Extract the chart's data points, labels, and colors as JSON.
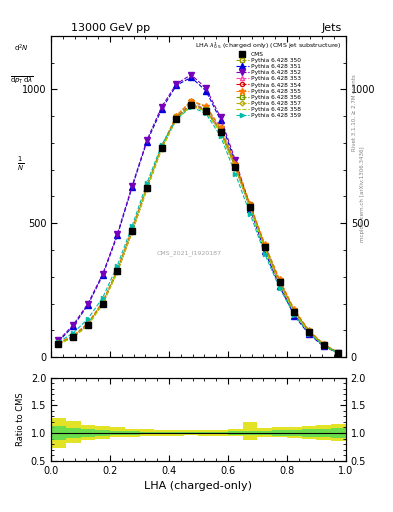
{
  "title_top": "13000 GeV pp",
  "title_right": "Jets",
  "plot_title": "LHA $\\lambda^{1}_{0.5}$ (charged only) (CMS jet substructure)",
  "xlabel": "LHA (charged-only)",
  "ylabel_ratio": "Ratio to CMS",
  "watermark": "CMS_2021_I1920187",
  "right_label": "Rivet 3.1.10, ≥ 2.7M events",
  "right_label2": "mcplots.cern.ch [arXiv:1306.3436]",
  "xlim": [
    0,
    1
  ],
  "ylim_main": [
    0,
    1200
  ],
  "ylim_ratio": [
    0.5,
    2.0
  ],
  "yticks_main": [
    0,
    500,
    1000
  ],
  "yticks_ratio": [
    0.5,
    1.0,
    1.5,
    2.0
  ],
  "ylabel_parts": [
    "mathrm d^{2}N",
    "mathrm d p_{T} mathrm d lambda"
  ],
  "series": [
    {
      "label": "CMS",
      "color": "#000000",
      "marker": "s",
      "markersize": 4,
      "linestyle": "none",
      "filled": true,
      "is_data": true,
      "x": [
        0.025,
        0.075,
        0.125,
        0.175,
        0.225,
        0.275,
        0.325,
        0.375,
        0.425,
        0.475,
        0.525,
        0.575,
        0.625,
        0.675,
        0.725,
        0.775,
        0.825,
        0.875,
        0.925,
        0.975
      ],
      "y": [
        50,
        75,
        120,
        200,
        320,
        470,
        630,
        780,
        890,
        940,
        920,
        840,
        710,
        560,
        410,
        280,
        170,
        95,
        45,
        15
      ]
    },
    {
      "label": "Pythia 6.428 350",
      "color": "#999900",
      "marker": "s",
      "markersize": 3,
      "linestyle": "--",
      "filled": false,
      "x": [
        0.025,
        0.075,
        0.125,
        0.175,
        0.225,
        0.275,
        0.325,
        0.375,
        0.425,
        0.475,
        0.525,
        0.575,
        0.625,
        0.675,
        0.725,
        0.775,
        0.825,
        0.875,
        0.925,
        0.975
      ],
      "y": [
        52,
        78,
        125,
        205,
        325,
        475,
        635,
        785,
        900,
        955,
        935,
        855,
        720,
        570,
        420,
        288,
        175,
        98,
        47,
        17
      ]
    },
    {
      "label": "Pythia 6.428 351",
      "color": "#0000dd",
      "marker": "^",
      "markersize": 4,
      "linestyle": "--",
      "filled": true,
      "x": [
        0.025,
        0.075,
        0.125,
        0.175,
        0.225,
        0.275,
        0.325,
        0.375,
        0.425,
        0.475,
        0.525,
        0.575,
        0.625,
        0.675,
        0.725,
        0.775,
        0.825,
        0.875,
        0.925,
        0.975
      ],
      "y": [
        58,
        115,
        195,
        305,
        455,
        635,
        805,
        925,
        1015,
        1045,
        995,
        885,
        725,
        555,
        395,
        265,
        155,
        85,
        40,
        14
      ]
    },
    {
      "label": "Pythia 6.428 352",
      "color": "#7700bb",
      "marker": "v",
      "markersize": 4,
      "linestyle": "--",
      "filled": true,
      "x": [
        0.025,
        0.075,
        0.125,
        0.175,
        0.225,
        0.275,
        0.325,
        0.375,
        0.425,
        0.475,
        0.525,
        0.575,
        0.625,
        0.675,
        0.725,
        0.775,
        0.825,
        0.875,
        0.925,
        0.975
      ],
      "y": [
        62,
        120,
        200,
        310,
        460,
        640,
        810,
        935,
        1020,
        1055,
        1005,
        895,
        735,
        565,
        405,
        272,
        160,
        88,
        42,
        15
      ]
    },
    {
      "label": "Pythia 6.428 353",
      "color": "#ff44aa",
      "marker": "^",
      "markersize": 3,
      "linestyle": "--",
      "filled": false,
      "x": [
        0.025,
        0.075,
        0.125,
        0.175,
        0.225,
        0.275,
        0.325,
        0.375,
        0.425,
        0.475,
        0.525,
        0.575,
        0.625,
        0.675,
        0.725,
        0.775,
        0.825,
        0.875,
        0.925,
        0.975
      ],
      "y": [
        51,
        76,
        122,
        202,
        322,
        472,
        632,
        782,
        895,
        948,
        928,
        848,
        712,
        562,
        412,
        282,
        172,
        96,
        46,
        16
      ]
    },
    {
      "label": "Pythia 6.428 354",
      "color": "#dd0000",
      "marker": "o",
      "markersize": 3,
      "linestyle": "--",
      "filled": false,
      "x": [
        0.025,
        0.075,
        0.125,
        0.175,
        0.225,
        0.275,
        0.325,
        0.375,
        0.425,
        0.475,
        0.525,
        0.575,
        0.625,
        0.675,
        0.725,
        0.775,
        0.825,
        0.875,
        0.925,
        0.975
      ],
      "y": [
        50,
        75,
        120,
        200,
        320,
        470,
        630,
        780,
        892,
        942,
        922,
        842,
        710,
        560,
        410,
        280,
        170,
        95,
        45,
        15
      ]
    },
    {
      "label": "Pythia 6.428 355",
      "color": "#ff7700",
      "marker": "*",
      "markersize": 5,
      "linestyle": "--",
      "filled": true,
      "x": [
        0.025,
        0.075,
        0.125,
        0.175,
        0.225,
        0.275,
        0.325,
        0.375,
        0.425,
        0.475,
        0.525,
        0.575,
        0.625,
        0.675,
        0.725,
        0.775,
        0.825,
        0.875,
        0.925,
        0.975
      ],
      "y": [
        54,
        80,
        127,
        207,
        328,
        478,
        638,
        788,
        902,
        958,
        938,
        858,
        722,
        572,
        422,
        290,
        178,
        100,
        48,
        17
      ]
    },
    {
      "label": "Pythia 6.428 356",
      "color": "#779900",
      "marker": "s",
      "markersize": 3,
      "linestyle": "--",
      "filled": false,
      "x": [
        0.025,
        0.075,
        0.125,
        0.175,
        0.225,
        0.275,
        0.325,
        0.375,
        0.425,
        0.475,
        0.525,
        0.575,
        0.625,
        0.675,
        0.725,
        0.775,
        0.825,
        0.875,
        0.925,
        0.975
      ],
      "y": [
        51,
        76,
        121,
        201,
        321,
        471,
        631,
        781,
        893,
        945,
        925,
        845,
        711,
        561,
        411,
        281,
        171,
        96,
        46,
        16
      ]
    },
    {
      "label": "Pythia 6.428 357",
      "color": "#bbaa00",
      "marker": "D",
      "markersize": 2.5,
      "linestyle": "--",
      "filled": false,
      "x": [
        0.025,
        0.075,
        0.125,
        0.175,
        0.225,
        0.275,
        0.325,
        0.375,
        0.425,
        0.475,
        0.525,
        0.575,
        0.625,
        0.675,
        0.725,
        0.775,
        0.825,
        0.875,
        0.925,
        0.975
      ],
      "y": [
        49,
        74,
        119,
        199,
        319,
        468,
        628,
        778,
        890,
        940,
        920,
        840,
        708,
        558,
        408,
        278,
        168,
        93,
        44,
        14
      ]
    },
    {
      "label": "Pythia 6.428 358",
      "color": "#aacc00",
      "marker": "None",
      "markersize": 0,
      "linestyle": "--",
      "filled": false,
      "x": [
        0.025,
        0.075,
        0.125,
        0.175,
        0.225,
        0.275,
        0.325,
        0.375,
        0.425,
        0.475,
        0.525,
        0.575,
        0.625,
        0.675,
        0.725,
        0.775,
        0.825,
        0.875,
        0.925,
        0.975
      ],
      "y": [
        49,
        73,
        118,
        198,
        318,
        466,
        626,
        776,
        888,
        938,
        918,
        838,
        706,
        556,
        406,
        276,
        166,
        92,
        43,
        13
      ]
    },
    {
      "label": "Pythia 6.428 359",
      "color": "#00bbaa",
      "marker": ">",
      "markersize": 3,
      "linestyle": "--",
      "filled": true,
      "x": [
        0.025,
        0.075,
        0.125,
        0.175,
        0.225,
        0.275,
        0.325,
        0.375,
        0.425,
        0.475,
        0.525,
        0.575,
        0.625,
        0.675,
        0.725,
        0.775,
        0.825,
        0.875,
        0.925,
        0.975
      ],
      "y": [
        56,
        90,
        143,
        222,
        342,
        490,
        650,
        792,
        888,
        935,
        910,
        825,
        685,
        535,
        385,
        258,
        158,
        88,
        43,
        15
      ]
    }
  ],
  "ratio_band_yellow_x": [
    0.0,
    0.05,
    0.1,
    0.15,
    0.2,
    0.25,
    0.3,
    0.35,
    0.4,
    0.45,
    0.5,
    0.55,
    0.6,
    0.65,
    0.7,
    0.75,
    0.8,
    0.85,
    0.9,
    0.95,
    1.0
  ],
  "ratio_band_yellow_low": [
    0.73,
    0.82,
    0.88,
    0.9,
    0.92,
    0.93,
    0.94,
    0.95,
    0.955,
    0.96,
    0.955,
    0.95,
    0.945,
    0.88,
    0.93,
    0.92,
    0.91,
    0.9,
    0.88,
    0.86,
    0.86
  ],
  "ratio_band_yellow_high": [
    1.27,
    1.22,
    1.15,
    1.12,
    1.1,
    1.08,
    1.07,
    1.06,
    1.055,
    1.05,
    1.055,
    1.06,
    1.065,
    1.2,
    1.09,
    1.1,
    1.11,
    1.12,
    1.14,
    1.16,
    1.16
  ],
  "ratio_band_green_low": [
    0.88,
    0.91,
    0.93,
    0.95,
    0.96,
    0.97,
    0.975,
    0.98,
    0.98,
    0.985,
    0.98,
    0.975,
    0.97,
    0.96,
    0.96,
    0.95,
    0.94,
    0.93,
    0.92,
    0.91,
    0.91
  ],
  "ratio_band_green_high": [
    1.12,
    1.09,
    1.07,
    1.05,
    1.04,
    1.03,
    1.025,
    1.02,
    1.02,
    1.015,
    1.02,
    1.025,
    1.03,
    1.04,
    1.04,
    1.05,
    1.06,
    1.07,
    1.08,
    1.09,
    1.09
  ]
}
